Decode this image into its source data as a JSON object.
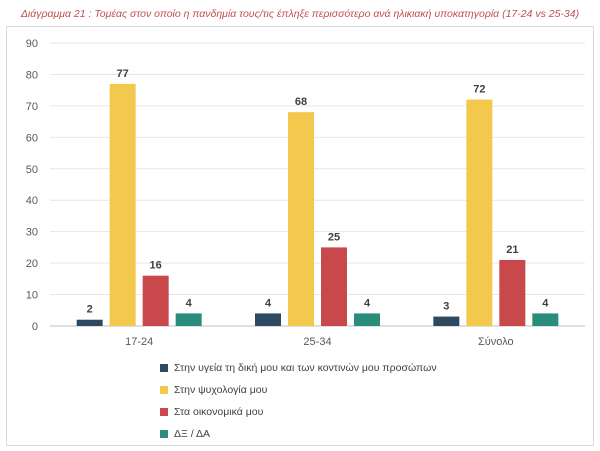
{
  "caption": "Διάγραμμα 21 : Τομέας στον οποίο η πανδημία τους/τις έπληξε περισσότερο ανά ηλικιακή υποκατηγορία (17-24 vs 25-34)",
  "chart_data": {
    "type": "bar",
    "categories": [
      "17-24",
      "25-34",
      "Σύνολο"
    ],
    "series": [
      {
        "name": "Στην υγεία τη δική μου και των κοντινών μου προσώπων",
        "color": "#2e4a62",
        "values": [
          2,
          4,
          3
        ]
      },
      {
        "name": "Στην ψυχολογία μου",
        "color": "#f2c94c",
        "values": [
          77,
          68,
          72
        ]
      },
      {
        "name": "Στα οικονομικά μου",
        "color": "#c9484b",
        "values": [
          16,
          25,
          21
        ]
      },
      {
        "name": "ΔΞ / ΔΑ",
        "color": "#2a8c7a",
        "values": [
          4,
          4,
          4
        ]
      }
    ],
    "ylim": [
      0,
      90
    ],
    "yticks": [
      0,
      10,
      20,
      30,
      40,
      50,
      60,
      70,
      80,
      90
    ],
    "grid": true,
    "legend_position": "bottom"
  }
}
